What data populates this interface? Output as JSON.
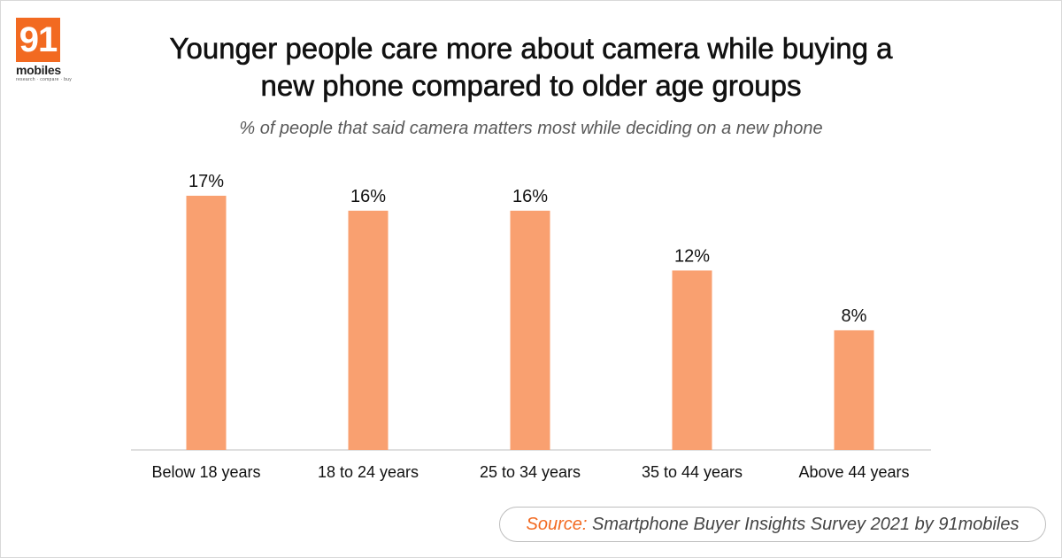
{
  "logo": {
    "number": "91",
    "wordmark": "mobiles",
    "tagline": "research · compare · buy"
  },
  "colors": {
    "bar": "#f9a070",
    "accent": "#f26a21",
    "axis": "#bfbfbf"
  },
  "header": {
    "title_line1": "Younger people care more about camera while buying a",
    "title_line2": "new phone compared to older age groups",
    "subtitle": "% of people that said camera matters most while deciding on a new phone"
  },
  "chart_data": {
    "type": "bar",
    "categories": [
      "Below 18 years",
      "18 to 24 years",
      "25 to 34 years",
      "35 to 44 years",
      "Above 44 years"
    ],
    "values": [
      17,
      16,
      16,
      12,
      8
    ],
    "data_labels": [
      "17%",
      "16%",
      "16%",
      "12%",
      "8%"
    ],
    "title": "Younger people care more about camera while buying a new phone compared to older age groups",
    "subtitle": "% of people that said camera matters most while deciding on a new phone",
    "xlabel": "",
    "ylabel": "",
    "ylim": [
      0,
      17
    ],
    "grid": false,
    "legend": "none"
  },
  "source": {
    "label": "Source:",
    "text": " Smartphone Buyer Insights Survey 2021 by 91mobiles"
  }
}
